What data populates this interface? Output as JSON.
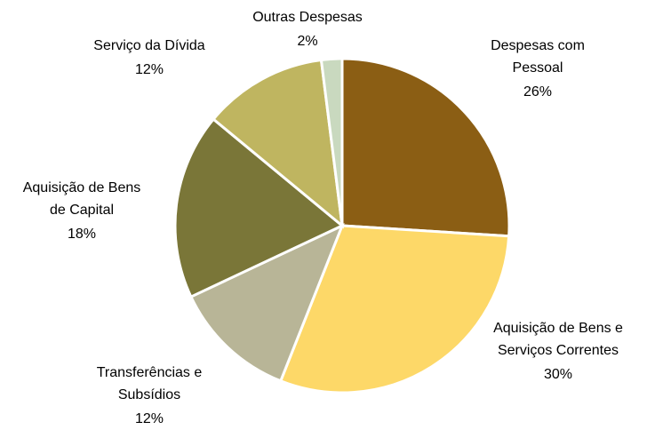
{
  "chart_data": {
    "type": "pie",
    "categories": [
      [
        "Despesas com",
        "Pessoal"
      ],
      [
        "Aquisição de Bens e",
        "Serviços Correntes"
      ],
      [
        "Transferências e",
        "Subsídios"
      ],
      [
        "Aquisição de Bens",
        "de Capital"
      ],
      [
        "Serviço da Dívida"
      ],
      [
        "Outras Despesas"
      ]
    ],
    "values": [
      26,
      30,
      12,
      18,
      12,
      2
    ],
    "value_labels": [
      "26%",
      "30%",
      "12%",
      "18%",
      "12%",
      "2%"
    ],
    "colors": [
      "#8b5e14",
      "#fdd868",
      "#b8b597",
      "#7a7638",
      "#bfb560",
      "#c9d9bf"
    ]
  }
}
